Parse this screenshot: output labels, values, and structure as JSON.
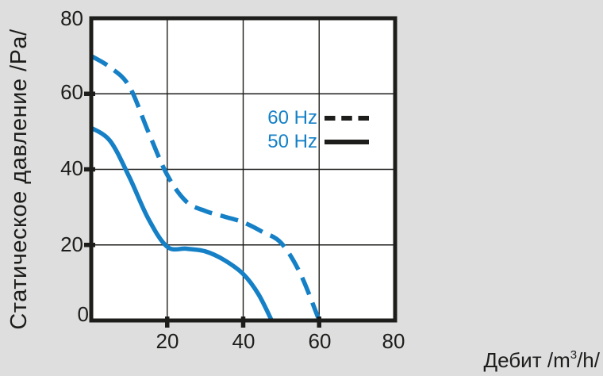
{
  "chart_data": {
    "type": "line",
    "title": "",
    "xlabel": "Дебит /m³/h/",
    "ylabel": "Статическое давление /Pa/",
    "xlim": [
      0,
      80
    ],
    "ylim": [
      0,
      80
    ],
    "x_ticks": [
      0,
      20,
      40,
      60,
      80
    ],
    "y_ticks": [
      0,
      20,
      40,
      60,
      80
    ],
    "x_tick_labels": [
      "0",
      "20",
      "40",
      "60",
      "80"
    ],
    "y_tick_labels": [
      "0",
      "20",
      "40",
      "60",
      "80"
    ],
    "grid": true,
    "legend_position": "inside-middle-right",
    "colors": {
      "axis": "#1d1d1b",
      "curve": "#1580c6",
      "plot_bg": "#ffffff",
      "page_bg": "#dedede"
    },
    "series": [
      {
        "name": "60 Hz",
        "style": "dashed",
        "color": "#1580c6",
        "points": [
          [
            0,
            70
          ],
          [
            5,
            67
          ],
          [
            10,
            62
          ],
          [
            15,
            50
          ],
          [
            20,
            38.5
          ],
          [
            25,
            31.5
          ],
          [
            30,
            29
          ],
          [
            35,
            27.5
          ],
          [
            40,
            26
          ],
          [
            45,
            23.5
          ],
          [
            50,
            20.5
          ],
          [
            55,
            12.5
          ],
          [
            60,
            0
          ]
        ]
      },
      {
        "name": "50 Hz",
        "style": "solid",
        "color": "#1580c6",
        "points": [
          [
            0,
            51
          ],
          [
            5,
            47.5
          ],
          [
            10,
            38
          ],
          [
            15,
            27
          ],
          [
            20,
            19.5
          ],
          [
            25,
            19
          ],
          [
            30,
            18.3
          ],
          [
            35,
            16
          ],
          [
            40,
            12.3
          ],
          [
            44,
            7
          ],
          [
            47.5,
            0
          ]
        ]
      }
    ],
    "legend": {
      "items": [
        {
          "label": "60 Hz",
          "line_style": "dashed"
        },
        {
          "label": "50 Hz",
          "line_style": "solid"
        }
      ],
      "label_color": "#1580c6",
      "sample_color": "#1d1d1b"
    }
  },
  "x_axis_title": {
    "prefix": "Дебит /m",
    "sup": "3",
    "suffix": "/h/"
  }
}
